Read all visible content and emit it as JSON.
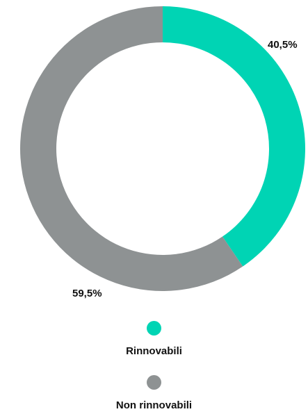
{
  "chart_data": {
    "type": "pie",
    "variant": "donut",
    "slices": [
      {
        "label": "Rinnovabili",
        "value": 40.5,
        "display": "40,5%",
        "color": "#00d4b4"
      },
      {
        "label": "Non rinnovabili",
        "value": 59.5,
        "display": "59,5%",
        "color": "#8e9293"
      }
    ],
    "legend_placement": "bottom"
  }
}
